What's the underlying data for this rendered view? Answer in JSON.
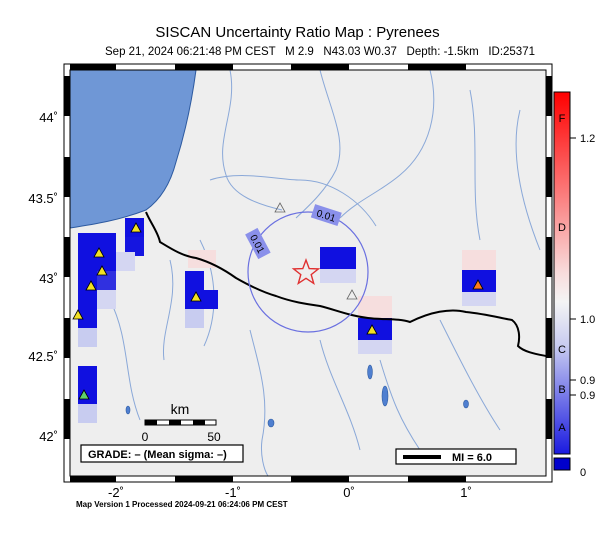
{
  "header": {
    "title": "SISCAN Uncertainty Ratio Map : Pyrenees",
    "subtitle": "Sep 21, 2024 06:21:48 PM CEST   M 2.9   N43.03 W0.37   Depth: -1.5km   ID:25371"
  },
  "map": {
    "lat_labels": [
      "44˚",
      "43.5˚",
      "43˚",
      "42.5˚",
      "42˚"
    ],
    "lon_labels": [
      "-2˚",
      "-1˚",
      "0˚",
      "1˚"
    ],
    "contour_labels": [
      "0.01",
      "0.01"
    ],
    "scale_bar": {
      "unit": "km",
      "ticks": [
        "0",
        "50"
      ]
    },
    "grade_box": "GRADE: – (Mean sigma: –)",
    "mi_legend": "MI = 6.0",
    "epicenter_icon": "star-icon",
    "station_icon": "triangle-icon"
  },
  "colorbar": {
    "left_labels": [
      "F",
      "D",
      "C",
      "B",
      "A"
    ],
    "right_labels": [
      "1.2",
      "1.0",
      "0.9",
      "0.9",
      "0"
    ],
    "colors": {
      "top": "#ff0000",
      "middle": "#f4f4f4",
      "bottom": "#0000dd"
    }
  },
  "footer": "Map Version 1 Processed 2024-09-21 06:24:06 PM CEST",
  "colors": {
    "land": "#eeeeee",
    "sea": "#6f97d6",
    "border": "#000000",
    "rivers": "#8aa8d8",
    "cell_blue": "#1010e0",
    "cell_light": "#c8ccf0",
    "cell_pink": "#f6dede",
    "epicenter": "#e03030",
    "station_yellow": "#f2e024",
    "station_orange": "#ff7a1a",
    "station_green": "#5fd46a"
  }
}
